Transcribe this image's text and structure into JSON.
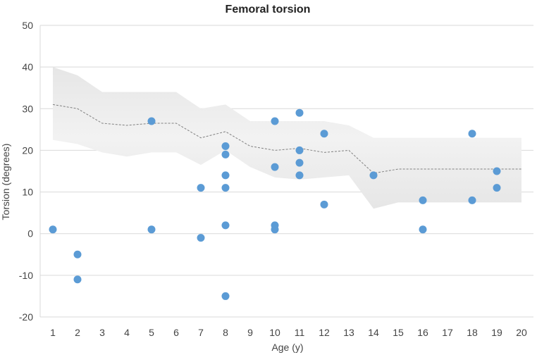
{
  "chart_data": {
    "type": "scatter",
    "title": "Femoral torsion",
    "xlabel": "Age (y)",
    "ylabel": "Torsion (degrees)",
    "ylim": [
      -20,
      50
    ],
    "y_ticks": [
      "50",
      "40",
      "30",
      "20",
      "10",
      "0",
      "-10",
      "-20"
    ],
    "y_tick_values": [
      50,
      40,
      30,
      20,
      10,
      0,
      -10,
      -20
    ],
    "categories": [
      "1",
      "2",
      "3",
      "4",
      "5",
      "6",
      "7",
      "8",
      "9",
      "10",
      "11",
      "12",
      "13",
      "14",
      "15",
      "16",
      "17",
      "18",
      "19",
      "20"
    ],
    "grid": true,
    "colors": {
      "points": "#5b9bd5",
      "band": "#e6e6e6",
      "mean_line": "#808080",
      "grid": "#d9d9d9"
    },
    "reference_band": {
      "upper": [
        40,
        38,
        34,
        34,
        34,
        34,
        30,
        31,
        27,
        27,
        27,
        27,
        26,
        23,
        23,
        23,
        23,
        23,
        23,
        23
      ],
      "lower": [
        22.5,
        21.5,
        19.5,
        18.5,
        19.5,
        19.5,
        16.5,
        20,
        16,
        13.5,
        13,
        13.5,
        14,
        6,
        7.5,
        7.5,
        7.5,
        7.5,
        7.5,
        7.5
      ],
      "mean": [
        31,
        30,
        26.5,
        26,
        26.5,
        26.5,
        23,
        24.5,
        21,
        20,
        20.5,
        19.5,
        20,
        14.5,
        15.5,
        15.5,
        15.5,
        15.5,
        15.5,
        15.5
      ]
    },
    "series": [
      {
        "x": [
          1,
          2,
          2,
          5,
          5,
          7,
          7,
          8,
          8,
          8,
          8,
          8,
          8,
          10,
          10,
          10,
          10,
          11,
          11,
          11,
          11,
          12,
          12,
          14,
          16,
          16,
          18,
          18,
          19,
          19
        ],
        "y": [
          1,
          -5,
          -11,
          27,
          1,
          11,
          -1,
          21,
          19,
          14,
          11,
          2,
          -15,
          27,
          16,
          2,
          1,
          29,
          20,
          17,
          14,
          24,
          7,
          14,
          8,
          1,
          24,
          8,
          15,
          11
        ]
      }
    ]
  }
}
